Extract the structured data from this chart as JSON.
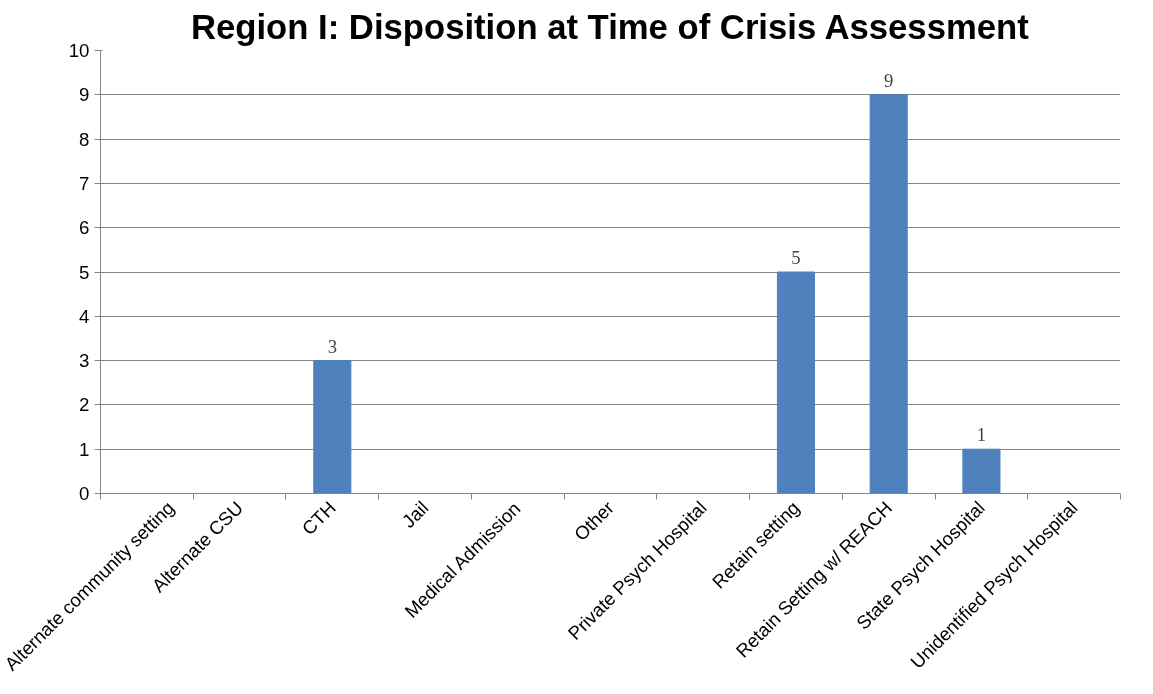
{
  "chart_data": {
    "type": "bar",
    "title": "Region I: Disposition at Time of Crisis Assessment",
    "categories": [
      "Alternate community setting",
      "Alternate CSU",
      "CTH",
      "Jail",
      "Medical Admission",
      "Other",
      "Private Psych Hospital",
      "Retain setting",
      "Retain Setting w/ REACH",
      "State Psych Hospital",
      "Unidentified Psych Hospital"
    ],
    "values": [
      0,
      0,
      3,
      0,
      0,
      0,
      0,
      5,
      9,
      1,
      0
    ],
    "value_labels": [
      null,
      null,
      "3",
      null,
      null,
      null,
      null,
      "5",
      "9",
      "1",
      null
    ],
    "color": "#4f81bd",
    "ylim": [
      0,
      10
    ],
    "yticks": [
      0,
      1,
      2,
      3,
      4,
      5,
      6,
      7,
      8,
      9,
      10
    ],
    "grid": "y"
  }
}
